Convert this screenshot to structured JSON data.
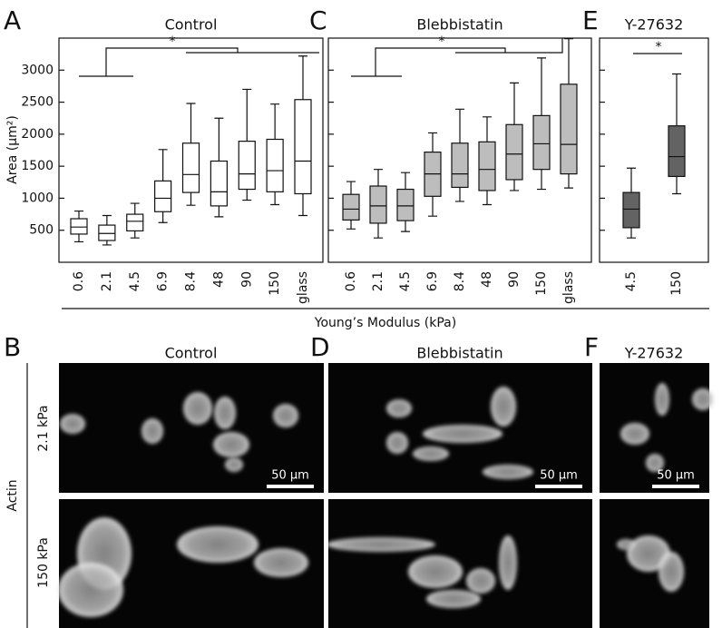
{
  "chart_data": [
    {
      "type": "box",
      "title": "Control",
      "ylabel": "Area (μm²)",
      "annotation": "*",
      "color": "#ffffff",
      "categories": [
        "0.6",
        "2.1",
        "4.5",
        "6.9",
        "8.4",
        "48",
        "90",
        "150",
        "glass"
      ],
      "min": [
        320,
        270,
        380,
        620,
        890,
        710,
        970,
        900,
        730
      ],
      "q1": [
        440,
        340,
        490,
        790,
        1090,
        880,
        1140,
        1100,
        1070
      ],
      "median": [
        550,
        450,
        640,
        1000,
        1370,
        1100,
        1380,
        1430,
        1580
      ],
      "q3": [
        680,
        580,
        750,
        1270,
        1860,
        1580,
        1890,
        1920,
        2540
      ],
      "max": [
        800,
        730,
        920,
        1760,
        2480,
        2250,
        2700,
        2470,
        3220
      ],
      "ylim": [
        0,
        3500
      ],
      "yticks": [
        500,
        1000,
        1500,
        2000,
        2500,
        3000
      ],
      "ytick_labels": true
    },
    {
      "type": "box",
      "title": "Blebbistatin",
      "annotation": "*",
      "color": "#bdbdbd",
      "categories": [
        "0.6",
        "2.1",
        "4.5",
        "6.9",
        "8.4",
        "48",
        "90",
        "150",
        "glass"
      ],
      "min": [
        520,
        380,
        480,
        720,
        950,
        900,
        1120,
        1140,
        1160
      ],
      "q1": [
        660,
        610,
        650,
        1030,
        1170,
        1120,
        1290,
        1450,
        1380
      ],
      "median": [
        830,
        880,
        880,
        1380,
        1380,
        1450,
        1690,
        1850,
        1840
      ],
      "q3": [
        1060,
        1190,
        1140,
        1720,
        1860,
        1880,
        2150,
        2290,
        2780
      ],
      "max": [
        1260,
        1450,
        1400,
        2020,
        2390,
        2270,
        2800,
        3190,
        3490
      ],
      "ylim": [
        0,
        3500
      ],
      "yticks": [
        500,
        1000,
        1500,
        2000,
        2500,
        3000
      ],
      "ytick_labels": false
    },
    {
      "type": "box",
      "title": "Y-27632",
      "annotation": "*",
      "color": "#636363",
      "categories": [
        "4.5",
        "150"
      ],
      "min": [
        380,
        1070
      ],
      "q1": [
        540,
        1340
      ],
      "median": [
        830,
        1650
      ],
      "q3": [
        1090,
        2130
      ],
      "max": [
        1470,
        2940
      ],
      "ylim": [
        0,
        3500
      ],
      "yticks": [
        500,
        1000,
        1500,
        2000,
        2500,
        3000
      ],
      "ytick_labels": false
    }
  ],
  "figure": {
    "xlabel": "Young’s Modulus (kPa)",
    "letters": [
      "A",
      "C",
      "E",
      "B",
      "D",
      "F"
    ]
  },
  "micrographs": {
    "stain": "Actin",
    "rows": [
      "2.1 kPa",
      "150 kPa"
    ],
    "scale_bar": "50 μm"
  }
}
